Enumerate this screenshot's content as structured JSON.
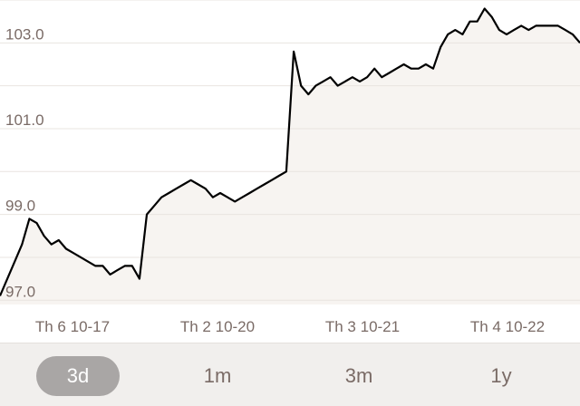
{
  "chart_data": {
    "type": "area",
    "grid": true,
    "ylim": [
      96.9,
      104.0
    ],
    "y_ticks": [
      "97.0",
      "99.0",
      "101.0",
      "103.0"
    ],
    "x_tick_labels": [
      "Th 6 10-17",
      "Th 2 10-20",
      "Th 3 10-21",
      "Th 4 10-22"
    ],
    "series": [
      {
        "values": [
          97.1,
          97.5,
          97.9,
          98.3,
          98.9,
          98.8,
          98.5,
          98.3,
          98.4,
          98.2,
          98.1,
          98.0,
          97.9,
          97.8,
          97.8,
          97.6,
          97.7,
          97.8,
          97.8,
          97.5,
          99.0,
          99.2,
          99.4,
          99.5,
          99.6,
          99.7,
          99.8,
          99.7,
          99.6,
          99.4,
          99.5,
          99.4,
          99.3,
          99.4,
          99.5,
          99.6,
          99.7,
          99.8,
          99.9,
          100.0,
          102.8,
          102.0,
          101.8,
          102.0,
          102.1,
          102.2,
          102.0,
          102.1,
          102.2,
          102.1,
          102.2,
          102.4,
          102.2,
          102.3,
          102.4,
          102.5,
          102.4,
          102.4,
          102.5,
          102.4,
          102.9,
          103.2,
          103.3,
          103.2,
          103.5,
          103.5,
          103.8,
          103.6,
          103.3,
          103.2,
          103.3,
          103.4,
          103.3,
          103.4,
          103.4,
          103.4,
          103.4,
          103.3,
          103.2,
          103.0
        ]
      }
    ],
    "colors": {
      "line": "#000000",
      "fill": "#f7f4f1",
      "grid": "#e9e4e0",
      "tick_text": "#7a6b66"
    }
  },
  "range_selector": {
    "options": [
      {
        "key": "3d",
        "label": "3d",
        "active": true
      },
      {
        "key": "1m",
        "label": "1m",
        "active": false
      },
      {
        "key": "3m",
        "label": "3m",
        "active": false
      },
      {
        "key": "1y",
        "label": "1y",
        "active": false
      }
    ]
  }
}
